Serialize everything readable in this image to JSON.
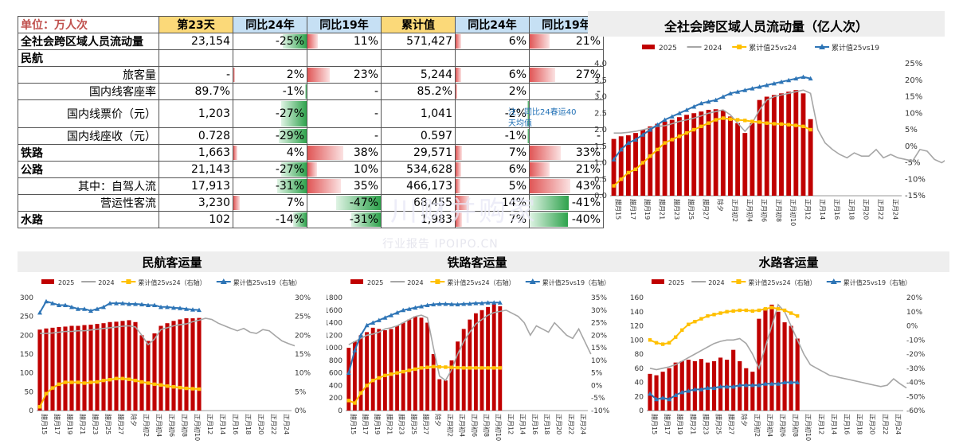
{
  "table": {
    "unit_label": "单位：万人次",
    "headers": [
      "第23天",
      "同比24年",
      "同比19年",
      "累计值",
      "同比24年",
      "同比19年"
    ],
    "rows": [
      {
        "label": "全社会跨区域人员流动量",
        "style": "bold",
        "cells": [
          "23,154",
          "-25%",
          "11%",
          "571,427",
          "6%",
          "21%"
        ],
        "bars": [
          null,
          -25,
          11,
          null,
          6,
          21
        ]
      },
      {
        "label": "民航",
        "style": "bold",
        "cells": [
          "",
          "",
          "",
          "",
          "",
          ""
        ],
        "bars": [
          null,
          null,
          null,
          null,
          null,
          null
        ]
      },
      {
        "label": "旅客量",
        "style": "sub",
        "cells": [
          "-",
          "2%",
          "23%",
          "5,244",
          "6%",
          "27%"
        ],
        "bars": [
          null,
          2,
          23,
          null,
          6,
          27
        ]
      },
      {
        "label": "国内线客座率",
        "style": "sub",
        "cells": [
          "89.7%",
          "-1%",
          "-",
          "85.2%",
          "2%",
          "-"
        ],
        "bars": [
          null,
          -1,
          null,
          null,
          2,
          null
        ]
      },
      {
        "label": "国内线票价（元）",
        "style": "sub tall",
        "cells": [
          "1,203",
          "-27%",
          "-",
          "1,041",
          "-2%",
          ""
        ],
        "bars": [
          null,
          -27,
          null,
          null,
          -2,
          null
        ]
      },
      {
        "label": "国内线座收（元）",
        "style": "sub",
        "cells": [
          "0.728",
          "-29%",
          "-",
          "0.597",
          "-1%",
          "-"
        ],
        "bars": [
          null,
          -29,
          null,
          null,
          -1,
          null
        ]
      },
      {
        "label": "铁路",
        "style": "bold",
        "cells": [
          "1,663",
          "4%",
          "38%",
          "29,571",
          "7%",
          "33%"
        ],
        "bars": [
          null,
          4,
          38,
          null,
          7,
          33
        ]
      },
      {
        "label": "公路",
        "style": "bold",
        "cells": [
          "21,143",
          "-27%",
          "10%",
          "534,628",
          "6%",
          "21%"
        ],
        "bars": [
          null,
          -27,
          10,
          null,
          6,
          21
        ]
      },
      {
        "label": "其中：自驾人流",
        "style": "sub",
        "cells": [
          "17,913",
          "-31%",
          "35%",
          "466,173",
          "5%",
          "43%"
        ],
        "bars": [
          null,
          -31,
          35,
          null,
          5,
          43
        ]
      },
      {
        "label": "营运性客流",
        "style": "sub",
        "cells": [
          "3,230",
          "7%",
          "-47%",
          "68,455",
          "14%",
          "-41%"
        ],
        "bars": [
          null,
          7,
          -47,
          null,
          14,
          -41
        ]
      },
      {
        "label": "水路",
        "style": "bold",
        "cells": [
          "102",
          "-14%",
          "-31%",
          "1,983",
          "7%",
          "-40%"
        ],
        "bars": [
          null,
          -14,
          -31,
          null,
          7,
          -40
        ]
      }
    ],
    "note": "注：同比24春运40天均值"
  },
  "watermark": {
    "main": "川财并购家",
    "sub": "行业报告 IPOIPO.CN"
  },
  "colors": {
    "bar2025": "#c00000",
    "line2024": "#a6a6a6",
    "yoy24": "#ffc000",
    "vs19": "#2e75b6"
  },
  "chart_data": [
    {
      "type": "bar",
      "title": "全社会跨区域人员流动量（亿人次）",
      "legend": [
        "2025",
        "2024",
        "累计值25vs24",
        "累计值25vs19"
      ],
      "x_ticks": [
        "腊月15",
        "腊月17",
        "腊月19",
        "腊月21",
        "腊月23",
        "腊月25",
        "腊月27",
        "除夕",
        "正月初2",
        "正月初4",
        "正月初6",
        "正月初8",
        "正月初10",
        "正月12",
        "正月14",
        "正月16",
        "正月18",
        "正月20",
        "正月22",
        "正月24"
      ],
      "ylim": [
        0,
        4.0
      ],
      "y_ticks": [
        "0.0",
        "0.5",
        "1.0",
        "1.5",
        "2.0",
        "2.5",
        "3.0",
        "3.5",
        "4.0"
      ],
      "y2lim": [
        -15,
        25
      ],
      "y2_ticks": [
        "-15%",
        "-10%",
        "-5%",
        "0%",
        "5%",
        "10%",
        "15%",
        "20%",
        "25%"
      ],
      "n_points": 40,
      "series": [
        {
          "name": "2025",
          "kind": "bar",
          "axis": "left",
          "values": [
            1.72,
            1.8,
            1.83,
            1.9,
            2.0,
            2.1,
            2.18,
            2.25,
            2.3,
            2.38,
            2.45,
            2.5,
            2.55,
            2.6,
            2.62,
            2.58,
            2.4,
            2.2,
            1.9,
            2.2,
            2.9,
            3.0,
            3.05,
            3.1,
            3.15,
            3.2,
            3.1,
            2.32
          ]
        },
        {
          "name": "2024",
          "kind": "line",
          "axis": "left",
          "values": [
            1.9,
            1.9,
            1.92,
            1.95,
            2.0,
            2.05,
            2.1,
            2.12,
            2.18,
            2.25,
            2.3,
            2.35,
            2.42,
            2.5,
            2.55,
            2.6,
            2.45,
            2.2,
            1.95,
            2.2,
            2.6,
            2.9,
            3.0,
            3.05,
            3.1,
            3.15,
            3.2,
            3.1,
            2.0,
            1.6,
            1.4,
            1.25,
            1.15,
            1.3,
            1.2,
            1.2,
            1.4,
            1.15,
            1.25,
            1.15,
            1.1,
            1.05,
            1.4,
            1.35,
            1.1,
            1.0,
            1.15,
            1.1,
            1.12,
            1.05
          ]
        },
        {
          "name": "累计值25vs24",
          "kind": "line",
          "axis": "right",
          "values": [
            -12,
            -10,
            -8,
            -7,
            -5,
            -3,
            -1,
            1,
            2,
            3,
            4,
            5,
            6,
            7,
            8,
            8.5,
            8.2,
            8.0,
            7.8,
            7.5,
            7.3,
            7.0,
            6.8,
            6.7,
            6.5,
            6.3,
            6.0,
            5.0
          ]
        },
        {
          "name": "累计值25vs19",
          "kind": "line",
          "axis": "right",
          "values": [
            -4,
            -1,
            1,
            2,
            3.5,
            5,
            6.5,
            8,
            9,
            10,
            11,
            12,
            13,
            13.5,
            14,
            15,
            16,
            16.5,
            17,
            17.5,
            18,
            18.5,
            19,
            19.5,
            20,
            20.5,
            21,
            20.5
          ]
        }
      ]
    },
    {
      "type": "bar",
      "title": "民航客运量",
      "legend": [
        "2025",
        "2024",
        "累计值25vs24（右轴）",
        "累计值25vs19（右轴）"
      ],
      "x_ticks": [
        "腊月15",
        "腊月17",
        "腊月19",
        "腊月21",
        "腊月23",
        "腊月25",
        "腊月27",
        "除夕",
        "正月初2",
        "正月初4",
        "正月初6",
        "正月初8",
        "正月初10",
        "正月12",
        "正月14",
        "正月16",
        "正月18",
        "正月20",
        "正月22",
        "正月24"
      ],
      "ylim": [
        0,
        300
      ],
      "y_ticks": [
        "0",
        "50",
        "100",
        "150",
        "200",
        "250",
        "300"
      ],
      "y2lim": [
        0,
        30
      ],
      "y2_ticks": [
        "0%",
        "5%",
        "10%",
        "15%",
        "20%",
        "25%",
        "30%"
      ],
      "n_points": 40,
      "series": [
        {
          "name": "2025",
          "kind": "bar",
          "axis": "left",
          "values": [
            215,
            218,
            220,
            222,
            223,
            225,
            225,
            227,
            228,
            230,
            232,
            235,
            236,
            238,
            240,
            235,
            200,
            185,
            205,
            225,
            232,
            238,
            242,
            245,
            245,
            246
          ]
        },
        {
          "name": "2024",
          "kind": "line",
          "axis": "left",
          "values": [
            205,
            205,
            206,
            208,
            210,
            210,
            212,
            212,
            214,
            216,
            218,
            220,
            222,
            224,
            225,
            222,
            200,
            175,
            190,
            215,
            220,
            225,
            228,
            230,
            236,
            240,
            245,
            242,
            232,
            225,
            218,
            212,
            218,
            208,
            205,
            215,
            212,
            198,
            185,
            178,
            172
          ]
        },
        {
          "name": "累计值25vs24（右轴）",
          "kind": "line",
          "axis": "right",
          "values": [
            1,
            4.5,
            6,
            7,
            7.5,
            7.5,
            7.5,
            7.3,
            7.5,
            7.6,
            8,
            8.2,
            8.5,
            8.5,
            8.3,
            8.0,
            7.6,
            7.3,
            7.0,
            6.8,
            6.5,
            6.3,
            6.1,
            5.9,
            5.8,
            5.7
          ]
        },
        {
          "name": "累计值25vs19（右轴）",
          "kind": "line",
          "axis": "right",
          "values": [
            26,
            29,
            28.5,
            28,
            28,
            27.5,
            27,
            27,
            26.5,
            27,
            27.5,
            28.5,
            28.5,
            28.5,
            28.3,
            28.3,
            28.2,
            28,
            28,
            27.5,
            27.5,
            27.3,
            27.2,
            27,
            26.8,
            26.7
          ]
        }
      ]
    },
    {
      "type": "bar",
      "title": "铁路客运量",
      "legend": [
        "2025",
        "2024",
        "累计值25vs24（右轴）",
        "累计值25vs19（右轴）"
      ],
      "x_ticks": [
        "腊月15",
        "腊月17",
        "腊月19",
        "腊月21",
        "腊月23",
        "腊月25",
        "腊月27",
        "除夕",
        "正月初2",
        "正月初4",
        "正月初6",
        "正月初8",
        "正月初10",
        "正月12",
        "正月14",
        "正月16",
        "正月18",
        "正月20",
        "正月22",
        "正月24"
      ],
      "ylim": [
        0,
        1800
      ],
      "y_ticks": [
        "0",
        "200",
        "400",
        "600",
        "800",
        "1000",
        "1200",
        "1400",
        "1600",
        "1800"
      ],
      "y2lim": [
        -10,
        35
      ],
      "y2_ticks": [
        "-10%",
        "-5%",
        "0%",
        "5%",
        "10%",
        "15%",
        "20%",
        "25%",
        "30%",
        "35%"
      ],
      "n_points": 40,
      "series": [
        {
          "name": "2025",
          "kind": "bar",
          "axis": "left",
          "values": [
            1000,
            1100,
            1200,
            1250,
            1320,
            1300,
            1280,
            1300,
            1350,
            1400,
            1450,
            1500,
            1480,
            1400,
            900,
            500,
            480,
            800,
            1100,
            1300,
            1450,
            1550,
            1600,
            1650,
            1700,
            1663
          ]
        },
        {
          "name": "2024",
          "kind": "line",
          "axis": "left",
          "values": [
            1050,
            1100,
            1150,
            1200,
            1220,
            1250,
            1300,
            1320,
            1350,
            1400,
            1450,
            1500,
            1520,
            1480,
            1000,
            550,
            480,
            650,
            900,
            1100,
            1250,
            1380,
            1450,
            1520,
            1560,
            1580,
            1600,
            1550,
            1500,
            1400,
            1200,
            1350,
            1300,
            1250,
            1400,
            1300,
            1200,
            1150,
            1300,
            1100,
            900
          ]
        },
        {
          "name": "累计值25vs24（右轴）",
          "kind": "line",
          "axis": "right",
          "values": [
            -6,
            -7,
            -3,
            0,
            2,
            3,
            4,
            4.5,
            5,
            5.5,
            6,
            6.5,
            7,
            7.2,
            7.5,
            7.4,
            7.3,
            7.2,
            7.1,
            7.0,
            7.0,
            7.0,
            7.0,
            7.0,
            7.0,
            7.0
          ]
        },
        {
          "name": "累计值25vs19（右轴）",
          "kind": "line",
          "axis": "right",
          "values": [
            5,
            14,
            20,
            24,
            25,
            26,
            27,
            28,
            29,
            30,
            30.5,
            31,
            31.5,
            32,
            32.3,
            32.5,
            32.5,
            32.4,
            32.3,
            32.5,
            32.6,
            32.8,
            32.8,
            33,
            33,
            33
          ]
        }
      ]
    },
    {
      "type": "bar",
      "title": "水路客运量",
      "legend": [
        "2025",
        "2024",
        "累计值25vs24（右轴）",
        "累计值25vs19（右轴）"
      ],
      "x_ticks": [
        "腊月15",
        "腊月17",
        "腊月19",
        "腊月21",
        "腊月23",
        "腊月25",
        "腊月27",
        "除夕",
        "正月初2",
        "正月初4",
        "正月初6",
        "正月初8",
        "正月初10",
        "正月12",
        "正月14",
        "正月16",
        "正月18",
        "正月20",
        "正月22",
        "正月24"
      ],
      "ylim": [
        0,
        160
      ],
      "y_ticks": [
        "0",
        "20",
        "40",
        "60",
        "80",
        "100",
        "120",
        "140",
        "160"
      ],
      "y2lim": [
        -60,
        20
      ],
      "y2_ticks": [
        "-60%",
        "-50%",
        "-40%",
        "-30%",
        "-20%",
        "-10%",
        "0%",
        "10%",
        "20%"
      ],
      "n_points": 40,
      "series": [
        {
          "name": "2025",
          "kind": "bar",
          "axis": "left",
          "values": [
            52,
            50,
            55,
            60,
            68,
            70,
            72,
            70,
            73,
            68,
            70,
            75,
            72,
            86,
            70,
            60,
            55,
            130,
            145,
            150,
            140,
            125,
            120,
            102
          ]
        },
        {
          "name": "2024",
          "kind": "line",
          "axis": "left",
          "values": [
            60,
            58,
            60,
            62,
            65,
            70,
            75,
            80,
            85,
            90,
            95,
            98,
            100,
            100,
            102,
            95,
            80,
            60,
            90,
            120,
            150,
            140,
            120,
            100,
            80,
            65,
            60,
            55,
            50,
            48,
            46,
            44,
            42,
            40,
            38,
            36,
            34,
            36,
            45,
            38,
            32
          ]
        },
        {
          "name": "累计值25vs24（右轴）",
          "kind": "line",
          "axis": "right",
          "values": [
            -10,
            -12,
            -13,
            -12,
            -8,
            -3,
            1,
            3,
            5,
            7,
            8,
            9,
            10,
            10.5,
            11,
            11,
            10.5,
            11,
            12,
            13,
            12,
            11,
            9,
            7
          ]
        },
        {
          "name": "累计值25vs19（右轴）",
          "kind": "line",
          "axis": "right",
          "values": [
            -48,
            -52,
            -51,
            -52,
            -49,
            -47,
            -46,
            -45,
            -45,
            -44,
            -44,
            -43,
            -43,
            -43,
            -42,
            -42,
            -42,
            -42,
            -41,
            -41,
            -41,
            -40,
            -40,
            -40
          ]
        }
      ]
    }
  ]
}
